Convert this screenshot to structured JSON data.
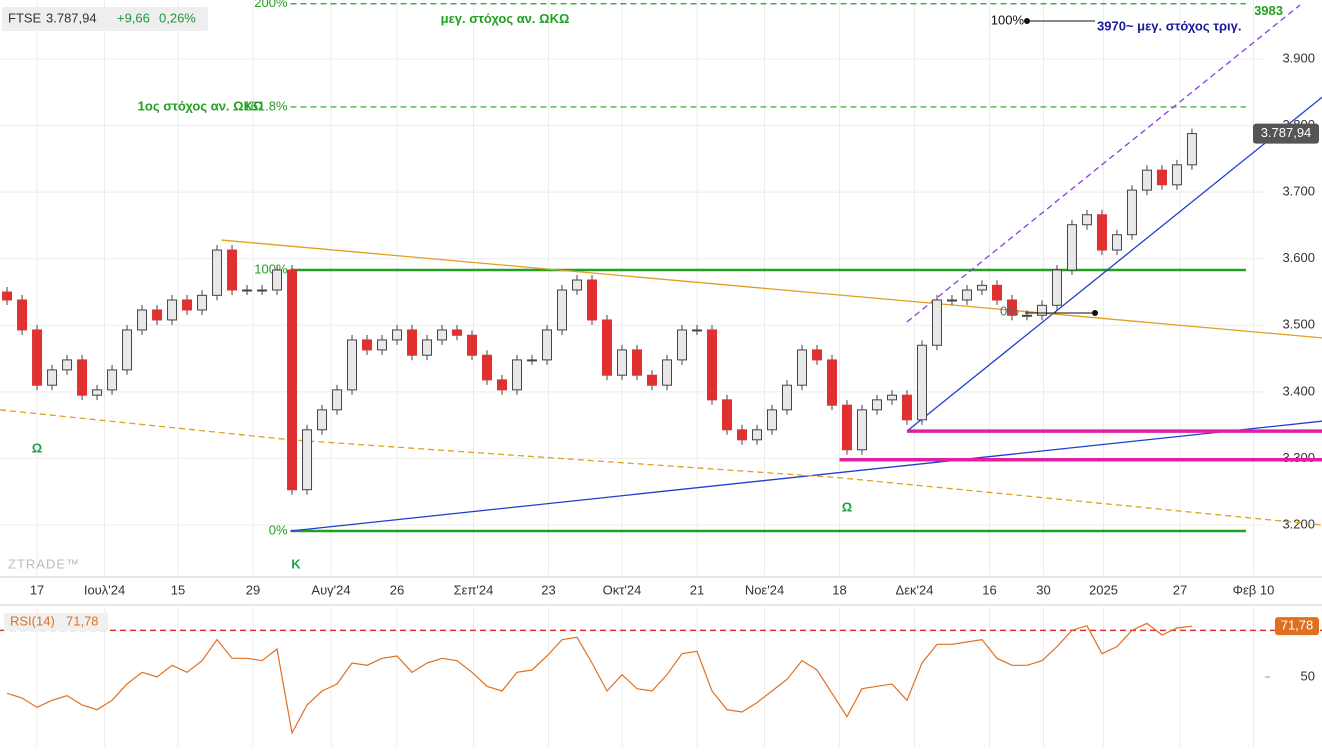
{
  "chart_data": {
    "type": "candlestick",
    "symbol": "FTSE",
    "last": "3.787,94",
    "change": "+9,66",
    "change_pct": "0,26%",
    "watermark": "ZTRADE™",
    "closes": [
      3538,
      3493,
      3410,
      3433,
      3448,
      3395,
      3403,
      3433,
      3493,
      3523,
      3508,
      3538,
      3523,
      3545,
      3613,
      3553,
      3553,
      3553,
      3583,
      3253,
      3343,
      3373,
      3403,
      3478,
      3463,
      3478,
      3493,
      3455,
      3478,
      3493,
      3485,
      3455,
      3418,
      3403,
      3448,
      3448,
      3493,
      3553,
      3568,
      3508,
      3425,
      3463,
      3425,
      3410,
      3448,
      3493,
      3493,
      3388,
      3343,
      3328,
      3343,
      3373,
      3410,
      3463,
      3448,
      3380,
      3313,
      3373,
      3388,
      3395,
      3358,
      3470,
      3538,
      3538,
      3553,
      3560,
      3538,
      3515,
      3515,
      3530,
      3583,
      3651,
      3666,
      3613,
      3636,
      3703,
      3733,
      3711,
      3741,
      3787.94
    ],
    "first_open": 3550,
    "up_color": "#e8e8e8",
    "down_color": "#e03030",
    "xlim": [
      -0.47,
      87.67
    ],
    "ylim": [
      3124.9,
      3988.6
    ],
    "yticks": [
      {
        "value": 3200,
        "label": "3.200"
      },
      {
        "value": 3300,
        "label": "3.300"
      },
      {
        "value": 3400,
        "label": "3.400"
      },
      {
        "value": 3500,
        "label": "3.500"
      },
      {
        "value": 3600,
        "label": "3.600"
      },
      {
        "value": 3700,
        "label": "3.700"
      },
      {
        "value": 3800,
        "label": "3.800"
      },
      {
        "value": 3900,
        "label": "3.900"
      }
    ],
    "xticks": [
      {
        "value": 2,
        "label": "17"
      },
      {
        "value": 6.5,
        "label": "Ιουλ'24"
      },
      {
        "value": 11.4,
        "label": "15"
      },
      {
        "value": 16.4,
        "label": "29"
      },
      {
        "value": 21.6,
        "label": "Αυγ'24"
      },
      {
        "value": 26,
        "label": "26"
      },
      {
        "value": 31.1,
        "label": "Σεπ'24"
      },
      {
        "value": 36.1,
        "label": "23"
      },
      {
        "value": 41,
        "label": "Οκτ'24"
      },
      {
        "value": 46,
        "label": "21"
      },
      {
        "value": 50.5,
        "label": "Νοε'24"
      },
      {
        "value": 55.5,
        "label": "18"
      },
      {
        "value": 60.5,
        "label": "Δεκ'24"
      },
      {
        "value": 65.5,
        "label": "16"
      },
      {
        "value": 69.1,
        "label": "30"
      },
      {
        "value": 73.1,
        "label": "2025"
      },
      {
        "value": 78.2,
        "label": "27"
      },
      {
        "value": 83.1,
        "label": "Φεβ 10"
      }
    ],
    "levels": [
      {
        "value": 3983,
        "pct": "200%",
        "label": "μεγ. στόχος αν. ΩΚΩ",
        "right": "3983",
        "color": "#22a022",
        "dash": true
      },
      {
        "value": 3828,
        "pct": "161.8%",
        "label": "1ος στόχος αν. ΩΚΩ",
        "color": "#22a022",
        "dash": true
      },
      {
        "value": 3583,
        "pct": "100%",
        "color": "#22a022",
        "dash": false
      },
      {
        "value": 3191,
        "pct": "0%",
        "color": "#22a022",
        "dash": false
      }
    ],
    "trendlines": [
      {
        "points": [
          [
            18.9,
            3191
          ],
          [
            87.7,
            3356
          ]
        ],
        "color": "#1f3fd0",
        "dash": false
      },
      {
        "points": [
          [
            60,
            3341
          ],
          [
            87.7,
            3843
          ]
        ],
        "color": "#1f3fd0",
        "dash": false
      },
      {
        "points": [
          [
            60,
            3505
          ],
          [
            86.2,
            3981
          ]
        ],
        "color": "#8a3fe0",
        "dash": true
      },
      {
        "points": [
          [
            14.3,
            3628
          ],
          [
            87.7,
            3481
          ]
        ],
        "color": "#e0a020",
        "dash": false
      },
      {
        "points": [
          [
            -0.47,
            3373
          ],
          [
            18.9,
            3328
          ],
          [
            55.5,
            3271
          ],
          [
            87.7,
            3200
          ]
        ],
        "color": "#e0a020",
        "dash": true
      },
      {
        "points": [
          [
            60,
            3341
          ],
          [
            87.7,
            3341
          ]
        ],
        "color": "#e020a0",
        "dash": false
      },
      {
        "points": [
          [
            55.5,
            3298
          ],
          [
            87.7,
            3298
          ]
        ],
        "color": "#e020a0",
        "dash": false
      }
    ],
    "annotations": {
      "omega1": "Ω",
      "kappa": "Κ",
      "omega2": "Ω",
      "top_pct": "100%",
      "tri_target": "3970~ μεγ. στόχος τριγ.",
      "zero_pct": "0%"
    },
    "rsi": {
      "name": "RSI(14)",
      "last": "71,78",
      "ylim": [
        20,
        80
      ],
      "ytick": 50,
      "level": 70,
      "color": "#e07020",
      "values": [
        43,
        41,
        37,
        40,
        42,
        38,
        36,
        40,
        47,
        52,
        50,
        55,
        52,
        57,
        66,
        58,
        58,
        57,
        62,
        26,
        38,
        44,
        47,
        56,
        55,
        58,
        59,
        52,
        56,
        58,
        57,
        52,
        46,
        44,
        52,
        53,
        59,
        66,
        67,
        56,
        44,
        51,
        45,
        44,
        51,
        60,
        61,
        44,
        36,
        35,
        39,
        44,
        49,
        57,
        53,
        43,
        33,
        45,
        46,
        47,
        40,
        56,
        64,
        64,
        65,
        66,
        58,
        55,
        55,
        57,
        63,
        70,
        72,
        60,
        63,
        70,
        73,
        68,
        71,
        71.78
      ]
    }
  }
}
